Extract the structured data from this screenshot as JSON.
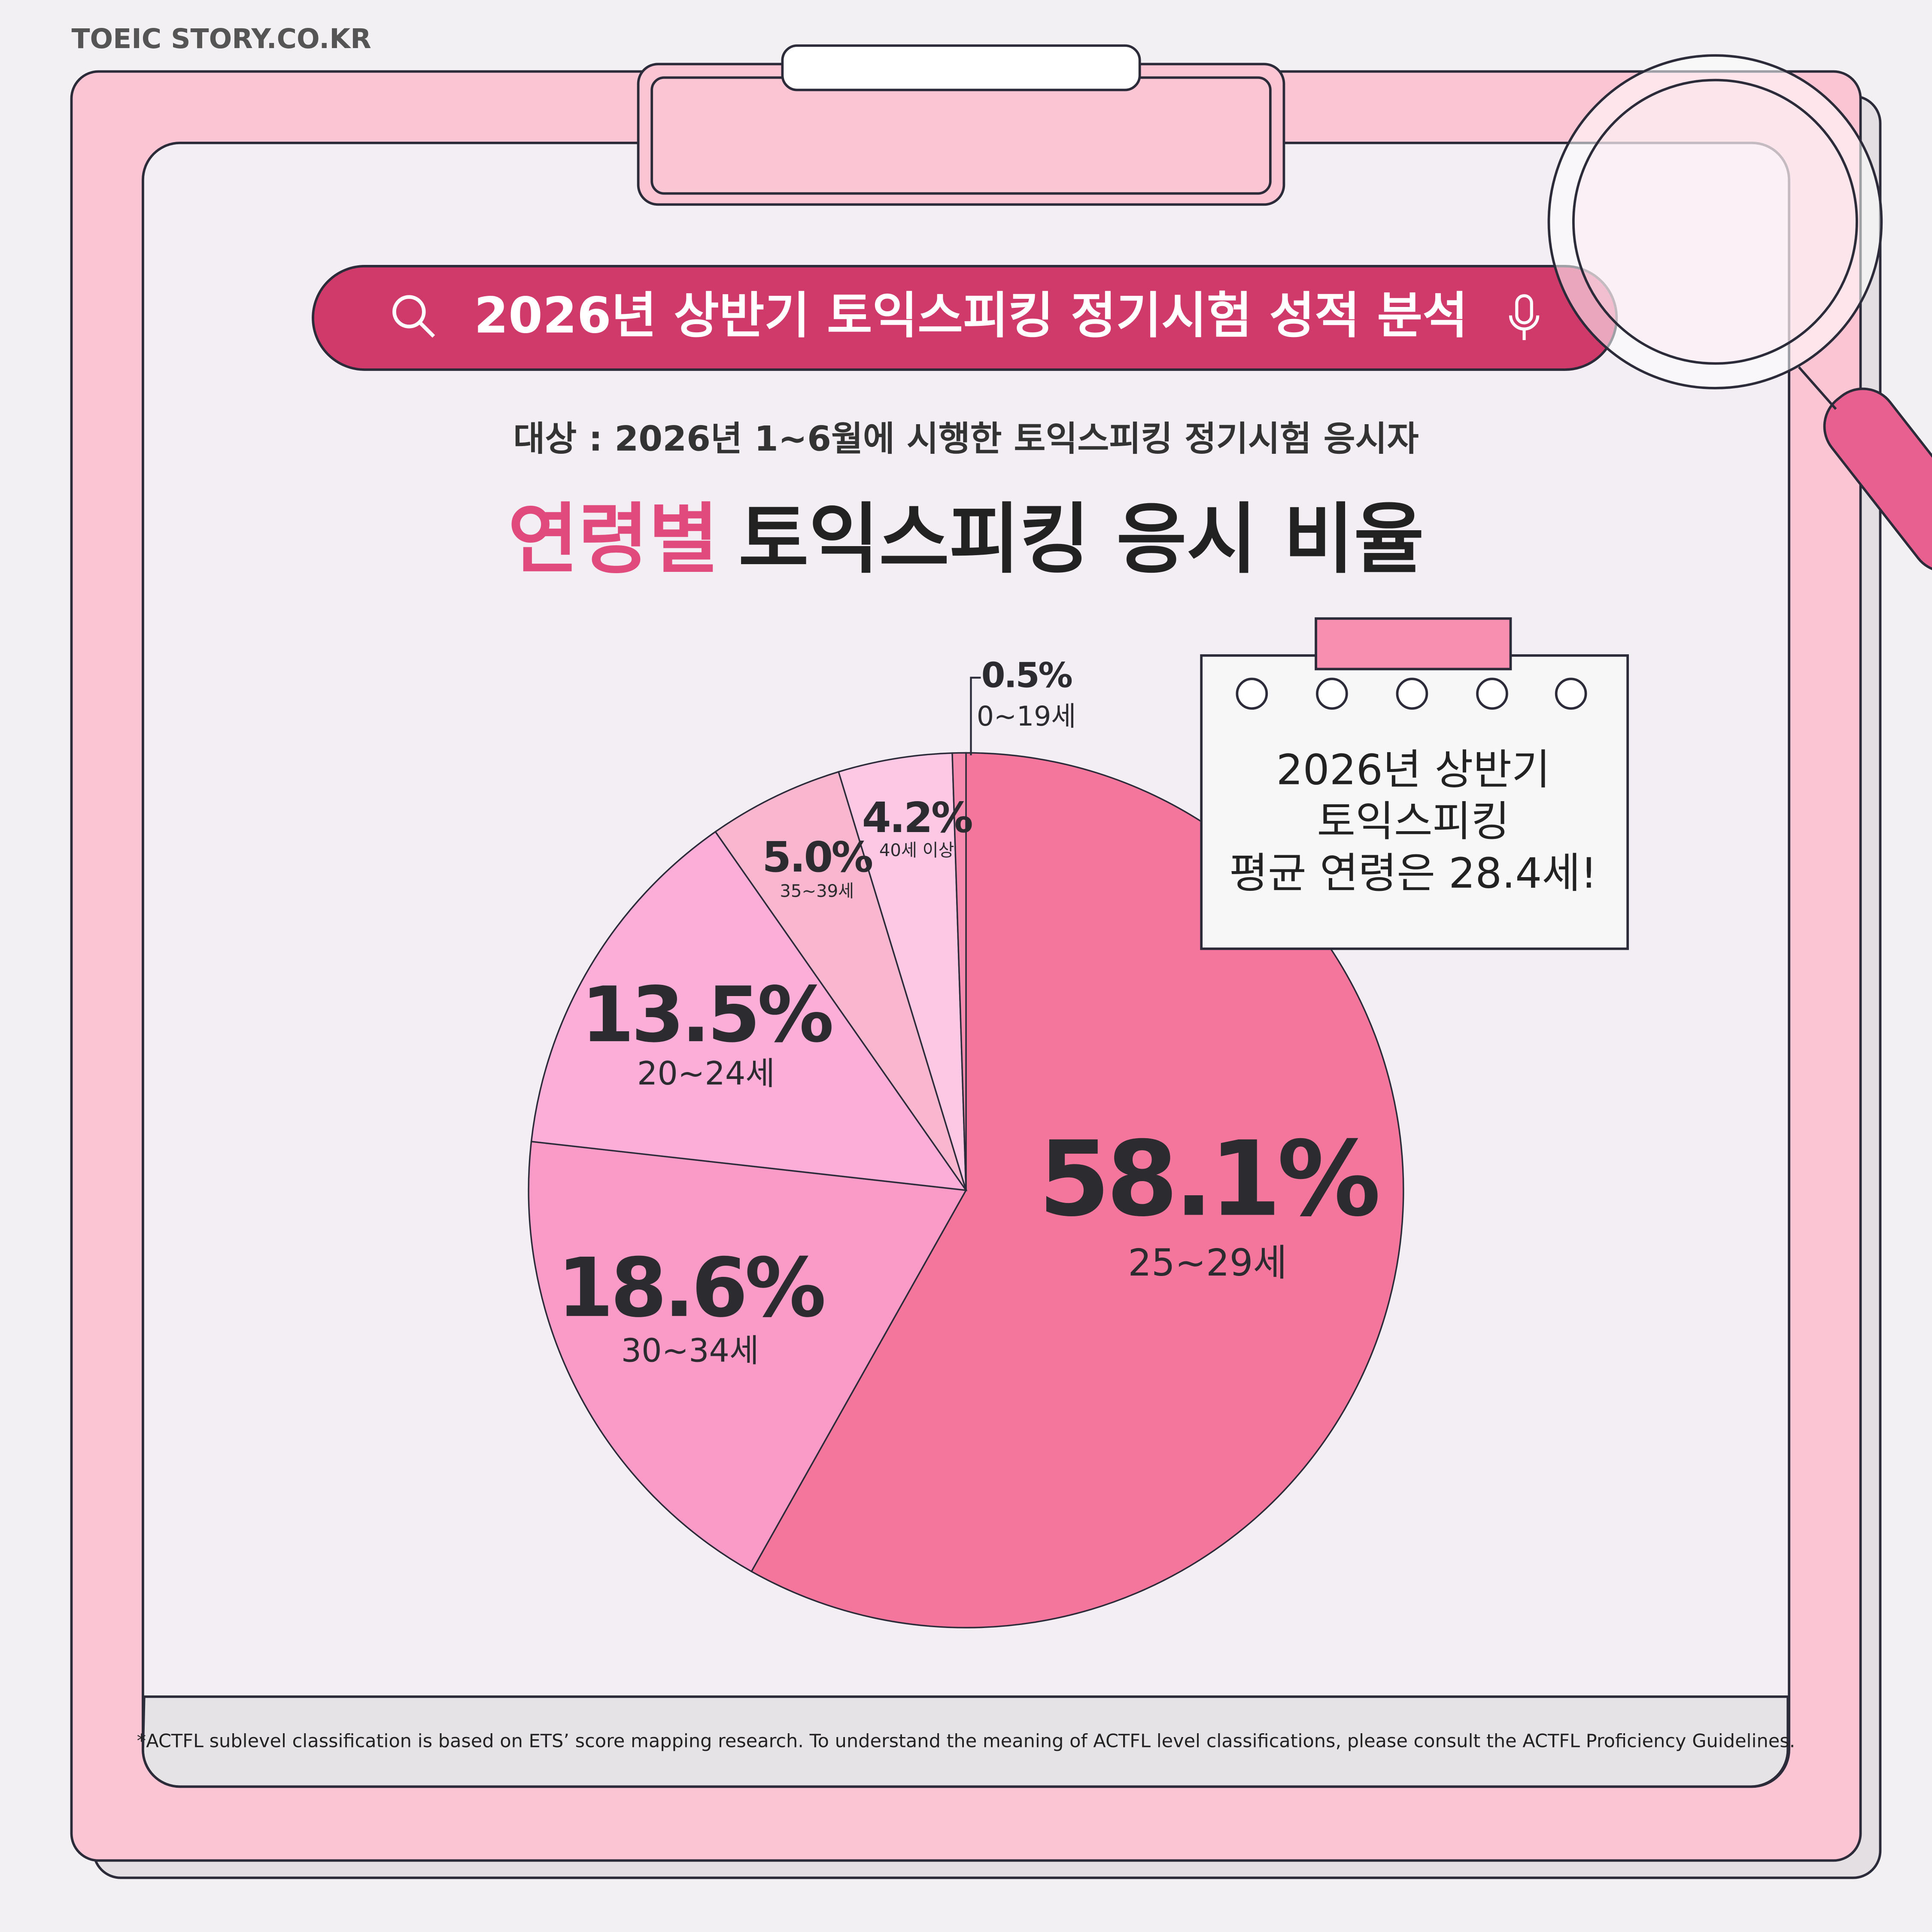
{
  "site": "TOEIC STORY.CO.KR",
  "header": "2026년 상반기 토익스피킹 정기시험 성적 분석",
  "subtitle": "대상 : 2026년 1~6월에 시행한 토익스피킹 정기시험 응시자",
  "title_highlight": "연령별",
  "title": "토익스피킹 응시 비율",
  "note": [
    "2026년 상반기",
    "토익스피킹",
    "평균 연령은 28.4세!"
  ],
  "footnote": "*ACTFL sublevel classification is based on ETS’ score mapping research. To understand the meaning of ACTFL level classifications, please consult the ACTFL Proficiency Guidelines.",
  "chart_data": {
    "type": "pie",
    "categories": [
      "25~29세",
      "30~34세",
      "20~24세",
      "35~39세",
      "40세 이상",
      "0~19세"
    ],
    "values": [
      58.1,
      18.6,
      13.5,
      5.0,
      4.2,
      0.5
    ],
    "value_labels": [
      "58.1%",
      "18.6%",
      "13.5%",
      "5.0%",
      "4.2%",
      "0.5%"
    ],
    "colors": [
      "#f5769c",
      "#f99bc6",
      "#fcaed8",
      "#f8b6cf",
      "#fdc8e3",
      "#f58cb0"
    ]
  }
}
